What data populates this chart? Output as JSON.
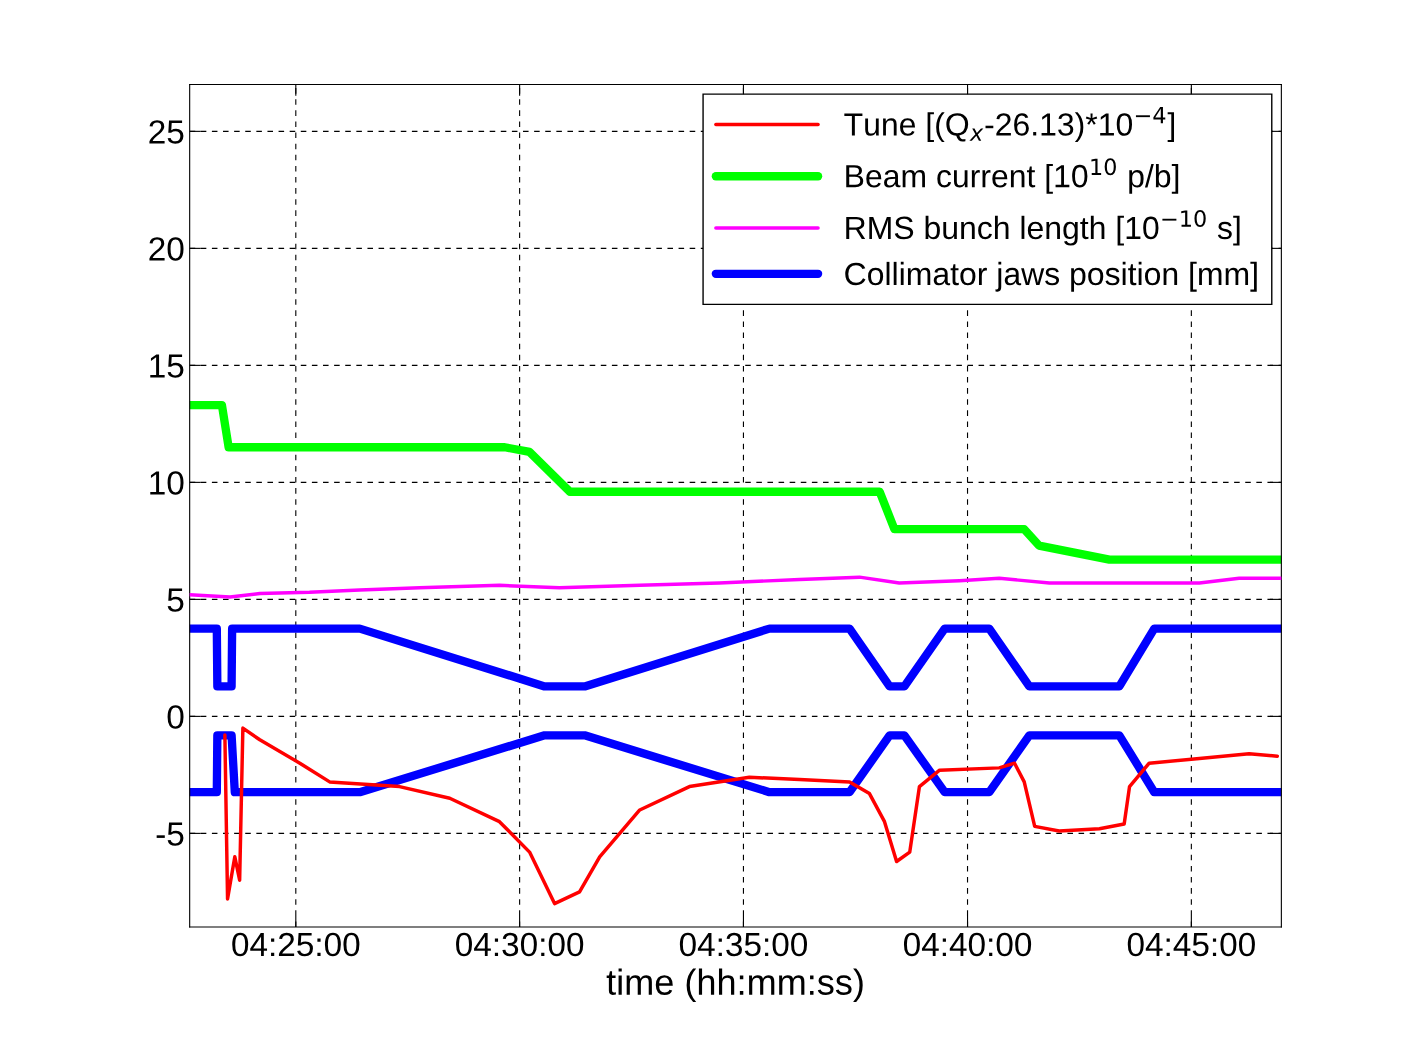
{
  "chart_data": {
    "type": "line",
    "xlabel": "time (hh:mm:ss)",
    "xlim": [
      4.3772,
      4.7835
    ],
    "ylim": [
      -9,
      27
    ],
    "xticks": [
      {
        "value": 4.4167,
        "label": "04:25:00"
      },
      {
        "value": 4.5,
        "label": "04:30:00"
      },
      {
        "value": 4.5833,
        "label": "04:35:00"
      },
      {
        "value": 4.6667,
        "label": "04:40:00"
      },
      {
        "value": 4.75,
        "label": "04:45:00"
      }
    ],
    "yticks": [
      -5,
      0,
      5,
      10,
      15,
      20,
      25
    ],
    "grid": true,
    "legend": "top right",
    "line_style": "solid",
    "series": [
      {
        "name": "Tune [(Q$_{x}$-26.13)*10$^{−4}$]",
        "color": "#ff0000",
        "x": [
          4.3903,
          4.3913,
          4.394,
          4.3958,
          4.397,
          4.4033,
          4.4182,
          4.4293,
          4.4553,
          4.474,
          4.4925,
          4.5037,
          4.513,
          4.5223,
          4.5298,
          4.5447,
          4.5632,
          4.5855,
          4.6042,
          4.6228,
          4.6302,
          4.6358,
          4.6403,
          4.6452,
          4.6488,
          4.6563,
          4.6785,
          4.6842,
          4.6878,
          4.6917,
          4.7008,
          4.7158,
          4.725,
          4.727,
          4.7343,
          4.753,
          4.7715,
          4.782
        ],
        "values": [
          -0.8,
          -7.8,
          -6,
          -7,
          -0.5,
          -1,
          -2,
          -2.8,
          -3,
          -3.5,
          -4.5,
          -5.8,
          -8,
          -7.5,
          -6,
          -4,
          -3,
          -2.6,
          -2.7,
          -2.8,
          -3.3,
          -4.5,
          -6.2,
          -5.8,
          -3,
          -2.3,
          -2.2,
          -2,
          -2.8,
          -4.7,
          -4.9,
          -4.8,
          -4.6,
          -3,
          -2,
          -1.8,
          -1.6,
          -1.7
        ]
      },
      {
        "name": "Beam current [10$^{10}$ p/b]",
        "color": "#00ff00",
        "x": [
          4.3772,
          4.3892,
          4.3917,
          4.4945,
          4.5037,
          4.5187,
          4.634,
          4.6395,
          4.6878,
          4.6933,
          4.7195,
          4.7835
        ],
        "values": [
          13.3,
          13.3,
          11.5,
          11.5,
          11.3,
          9.6,
          9.6,
          8.0,
          8.0,
          7.3,
          6.7,
          6.7
        ]
      },
      {
        "name": "RMS bunch length [10$^{−10}$ s]",
        "color": "#ff00ff",
        "x": [
          4.3772,
          4.3922,
          4.4033,
          4.4218,
          4.4405,
          4.4628,
          4.4925,
          4.5148,
          4.5447,
          4.5743,
          4.6042,
          4.6265,
          4.6413,
          4.6637,
          4.6785,
          4.6972,
          4.753,
          4.7678,
          4.7835
        ],
        "values": [
          5.2,
          5.1,
          5.25,
          5.3,
          5.4,
          5.5,
          5.6,
          5.5,
          5.6,
          5.7,
          5.85,
          5.95,
          5.7,
          5.8,
          5.9,
          5.7,
          5.7,
          5.9,
          5.9
        ]
      },
      {
        "name": "Collimator jaws position [mm]",
        "color": "#0000ff",
        "x": [
          4.3772,
          4.3873,
          4.3875,
          4.3928,
          4.393,
          4.4405,
          4.5093,
          4.5242,
          4.593,
          4.6228,
          4.6377,
          4.6432,
          4.6582,
          4.6748,
          4.6897,
          4.7232,
          4.7362,
          4.7835
        ],
        "values": [
          3.75,
          3.75,
          1.28,
          1.28,
          3.75,
          3.75,
          1.28,
          1.28,
          3.75,
          3.75,
          1.28,
          1.28,
          3.75,
          3.75,
          1.28,
          1.28,
          3.75,
          3.75
        ]
      },
      {
        "color": "#0000ff",
        "x": [
          4.3772,
          4.3873,
          4.3875,
          4.3928,
          4.394,
          4.4405,
          4.5093,
          4.5242,
          4.593,
          4.6228,
          4.6377,
          4.6432,
          4.6582,
          4.6748,
          4.6897,
          4.7232,
          4.7362,
          4.7835
        ],
        "values": [
          -3.24,
          -3.24,
          -0.81,
          -0.81,
          -3.24,
          -3.24,
          -0.81,
          -0.81,
          -3.24,
          -3.24,
          -0.81,
          -0.81,
          -3.24,
          -3.24,
          -0.81,
          -0.81,
          -3.24,
          -3.24
        ]
      }
    ]
  }
}
